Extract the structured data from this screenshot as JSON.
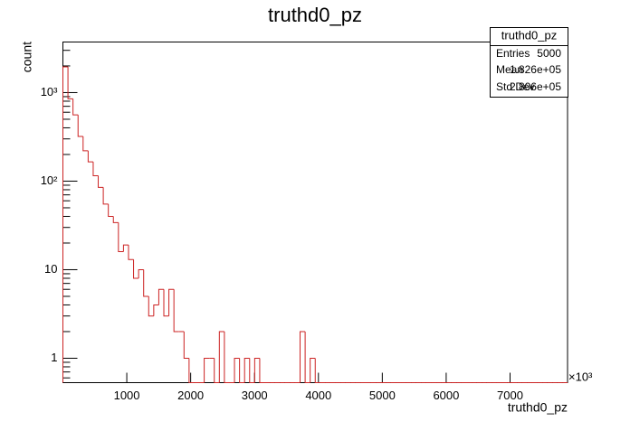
{
  "chart_data": {
    "type": "histogram",
    "title": "truthd0_pz",
    "xlabel": "truthd0_pz",
    "ylabel": "count",
    "x_multiplier": "×10³",
    "bins": [
      0,
      79,
      158,
      237,
      316,
      395,
      474,
      553,
      632,
      711,
      790,
      869,
      948,
      1027,
      1106,
      1185,
      1264,
      1343,
      1422,
      1501,
      1580,
      1659,
      1738,
      1817,
      1896,
      1975,
      2054,
      2133,
      2212,
      2291,
      2370,
      2449,
      2528,
      2607,
      2686,
      2765,
      2844,
      2923,
      3002,
      3081,
      3160,
      3239,
      3318,
      3397,
      3476,
      3555,
      3634,
      3713,
      3792,
      3871,
      3950,
      4029,
      4108,
      4187,
      4266,
      4345,
      4424,
      4503,
      4582,
      4661,
      4740,
      4819,
      4898,
      4977,
      5056,
      5135,
      5214,
      5293,
      5372,
      5451,
      5530,
      5609,
      5688,
      5767,
      5846,
      5925,
      6004,
      6083,
      6162,
      6241,
      6320,
      6399,
      6478,
      6557,
      6636,
      6715,
      6794,
      6873,
      6952,
      7031,
      7110,
      7189,
      7268,
      7347,
      7426,
      7505,
      7584,
      7663,
      7742,
      7821,
      7900
    ],
    "values": [
      1950,
      850,
      560,
      320,
      220,
      165,
      115,
      85,
      55,
      40,
      34,
      16,
      19,
      13,
      8,
      10,
      5,
      3,
      4,
      6,
      3,
      6,
      2,
      2,
      1,
      0,
      0,
      0,
      1,
      1,
      0,
      2,
      0,
      0,
      1,
      0,
      1,
      0,
      1,
      0,
      0,
      0,
      0,
      0,
      0,
      0,
      0,
      2,
      0,
      1,
      0,
      0,
      0,
      0,
      0,
      0,
      0,
      0,
      0,
      0,
      0,
      0,
      0,
      0,
      0,
      0,
      0,
      0,
      0,
      0,
      0,
      0,
      0,
      0,
      0,
      0,
      0,
      0,
      0,
      0,
      0,
      0,
      0,
      0,
      0,
      0,
      0,
      0,
      0,
      0,
      0,
      0,
      0,
      0,
      0,
      0,
      0,
      0,
      0,
      0
    ],
    "color": "#cc2222",
    "log_y": true,
    "xlim": [
      0,
      7900
    ],
    "xticks": [
      1000,
      2000,
      3000,
      4000,
      5000,
      6000,
      7000
    ],
    "ylim": [
      0.53,
      3725
    ],
    "yticks": [
      1,
      10,
      {
        "value": 100,
        "label": "10²"
      },
      {
        "value": 1000,
        "label": "10³"
      }
    ],
    "stats": {
      "title": "truthd0_pz",
      "rows": [
        [
          "Entries",
          "5000"
        ],
        [
          "Mean",
          "1.826e+05"
        ],
        [
          "Std Dev",
          "2.806e+05"
        ]
      ]
    }
  }
}
